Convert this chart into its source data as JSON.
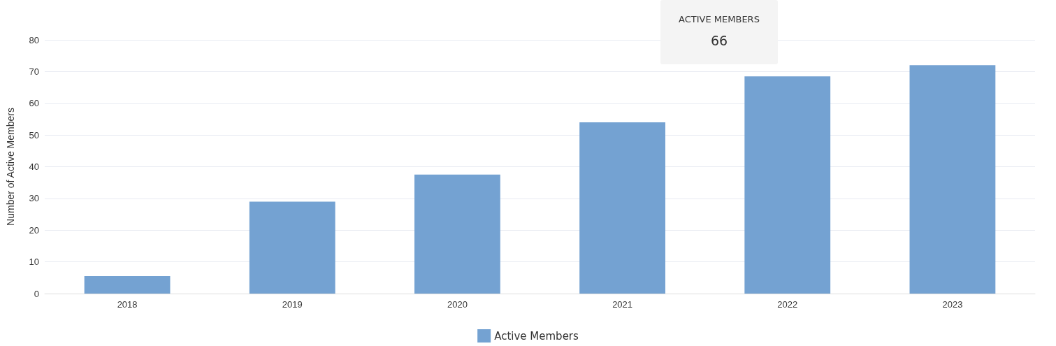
{
  "chart_data": {
    "type": "bar",
    "ylabel": "Number of Active Members",
    "categories": [
      "2018",
      "2019",
      "2020",
      "2021",
      "2022",
      "2023"
    ],
    "series": [
      {
        "name": "Active Members",
        "color": "#74a2d2",
        "values": [
          5.5,
          29,
          37.5,
          54,
          68.5,
          72
        ]
      }
    ],
    "ylim": [
      0,
      80
    ],
    "yticks": [
      0,
      10,
      20,
      30,
      40,
      50,
      60,
      70,
      80
    ],
    "grid": "y",
    "legend": "bottom",
    "annotations": [
      "ACTIVE MEMBERS",
      "66"
    ]
  }
}
